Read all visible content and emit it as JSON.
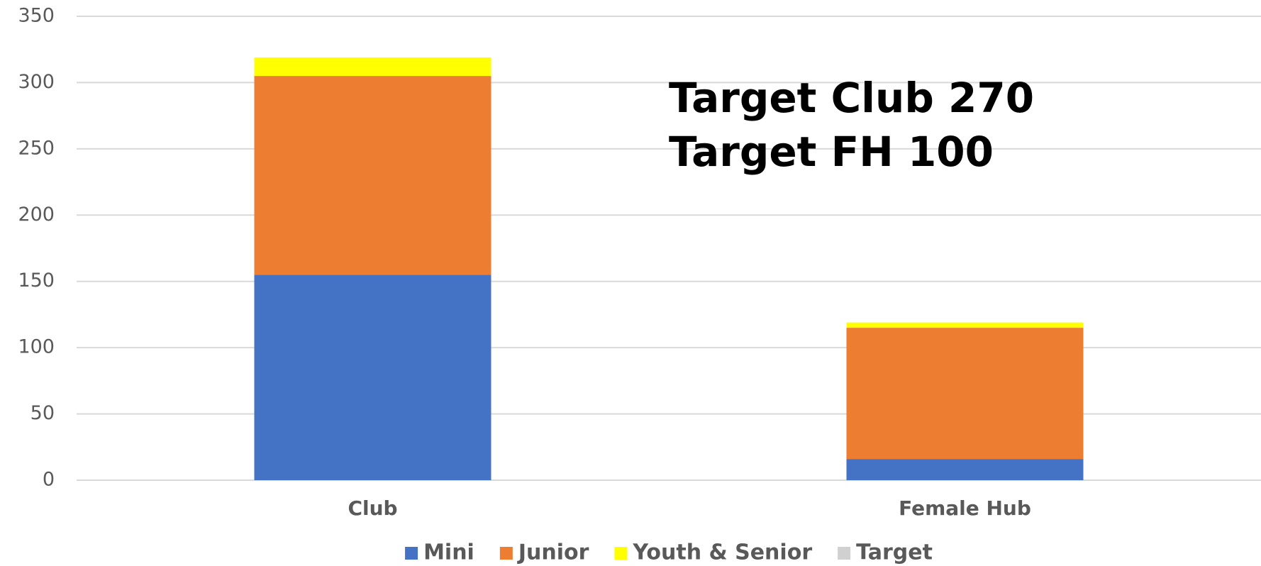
{
  "chart_data": {
    "type": "stacked_bar",
    "annotations": [
      "Target Club 270",
      "Target FH 100"
    ],
    "categories": [
      "Club",
      "Female Hub"
    ],
    "series": [
      {
        "name": "Mini",
        "color": "#4472c4",
        "values": [
          155,
          16
        ]
      },
      {
        "name": "Junior",
        "color": "#ed7d31",
        "values": [
          150,
          99
        ]
      },
      {
        "name": "Youth & Senior",
        "color": "#ffff00",
        "values": [
          14,
          4
        ]
      },
      {
        "name": "Target",
        "color": "#d0d0d0",
        "values": [
          null,
          null
        ]
      }
    ],
    "ylim": [
      0,
      350
    ],
    "yticks": [
      0,
      50,
      100,
      150,
      200,
      250,
      300,
      350
    ],
    "grid": true,
    "legend": "bottom"
  }
}
